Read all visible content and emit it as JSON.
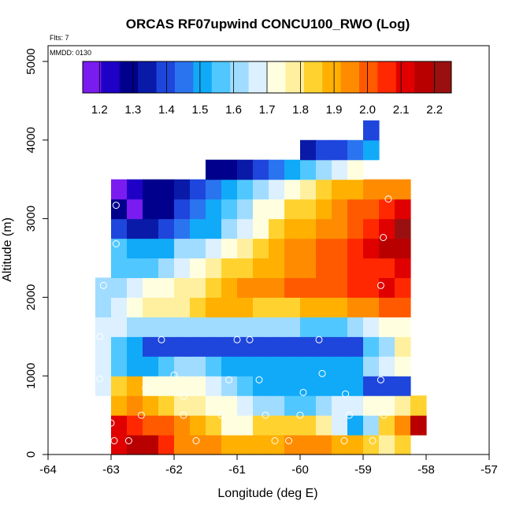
{
  "chart_data": {
    "type": "heatmap",
    "title": "ORCAS RF07upwind CONCU100_RWO (Log)",
    "xlabel": "Longitude (deg E)",
    "ylabel": "Altitude (m)",
    "xlim": [
      -64,
      -57
    ],
    "ylim": [
      0,
      5200
    ],
    "xticks": [
      -64,
      -63,
      -62,
      -61,
      -60,
      -59,
      -58,
      -57
    ],
    "yticks": [
      0,
      1000,
      2000,
      3000,
      4000,
      5000
    ],
    "x_tick_labels": [
      "-64",
      "-63",
      "-62",
      "-61",
      "-60",
      "-59",
      "-58",
      "-57"
    ],
    "y_tick_labels": [
      "0",
      "1000",
      "2000",
      "3000",
      "4000",
      "5000"
    ],
    "flights_label": "Flts: 7",
    "date_label": "MMDD: 0130",
    "colorbar": {
      "min": 1.15,
      "max": 2.25,
      "tick_labels": [
        "1.2",
        "1.3",
        "1.4",
        "1.5",
        "1.6",
        "1.7",
        "1.8",
        "1.9",
        "2.0",
        "2.1",
        "2.2"
      ],
      "tick_values": [
        1.2,
        1.3,
        1.4,
        1.5,
        1.6,
        1.7,
        1.8,
        1.9,
        2.0,
        2.1,
        2.2
      ],
      "colors": [
        "#7a1cf0",
        "#1f00c6",
        "#00008c",
        "#0a1aa8",
        "#1e46dc",
        "#2a74f0",
        "#10aaf8",
        "#50c8ff",
        "#a0dcff",
        "#dcf0ff",
        "#ffffe0",
        "#fff0a0",
        "#ffd230",
        "#ffb000",
        "#ff8c00",
        "#ff5a00",
        "#ff2800",
        "#e00000",
        "#b80000",
        "#9a1010"
      ]
    },
    "grid": {
      "lon_start": -63.35,
      "lon_step": 0.25,
      "alt_step": 250,
      "rows": [
        {
          "alt": 0,
          "lon_start": -63.0,
          "values": [
            2.12,
            2.18,
            2.16,
            2.08,
            1.97,
            1.93,
            1.93,
            1.9,
            1.91,
            1.91,
            1.89,
            1.92,
            1.93,
            1.93,
            1.9,
            1.87,
            1.84,
            1.79,
            1.86
          ]
        },
        {
          "alt": 250,
          "lon_start": -63.0,
          "values": [
            2.1,
            2.08,
            2.02,
            1.99,
            1.94,
            1.9,
            1.81,
            1.71,
            1.73,
            1.82,
            1.83,
            1.86,
            1.83,
            1.77,
            1.65,
            1.5,
            1.64,
            1.86,
            1.95,
            2.16
          ]
        },
        {
          "alt": 500,
          "lon_start": -63.0,
          "values": [
            1.91,
            1.92,
            1.91,
            1.82,
            1.78,
            1.79,
            1.74,
            1.72,
            1.68,
            1.64,
            1.62,
            1.57,
            1.55,
            1.61,
            1.65,
            1.66,
            1.71,
            1.72,
            1.77,
            1.84
          ]
        },
        {
          "alt": 750,
          "lon_start": -63.25,
          "values": [
            1.67,
            1.85,
            1.91,
            1.75,
            1.72,
            1.71,
            1.73,
            1.69,
            1.62,
            1.55,
            1.5,
            1.51,
            1.51,
            1.51,
            1.5,
            1.5,
            1.48,
            1.4,
            1.4,
            1.4
          ]
        },
        {
          "alt": 1000,
          "lon_start": -63.25,
          "values": [
            1.65,
            1.56,
            1.53,
            1.49,
            1.57,
            1.6,
            1.61,
            1.56,
            1.53,
            1.51,
            1.5,
            1.5,
            1.5,
            1.52,
            1.51,
            1.5,
            1.52,
            1.62,
            1.68,
            1.7
          ]
        },
        {
          "alt": 1250,
          "lon_start": -63.25,
          "values": [
            1.67,
            1.57,
            1.52,
            1.4,
            1.4,
            1.38,
            1.4,
            1.42,
            1.42,
            1.42,
            1.41,
            1.42,
            1.42,
            1.42,
            1.4,
            1.4,
            1.4,
            1.56,
            1.62,
            1.78
          ]
        },
        {
          "alt": 1500,
          "lon_start": -63.25,
          "values": [
            1.65,
            1.66,
            1.64,
            1.62,
            1.62,
            1.62,
            1.61,
            1.62,
            1.61,
            1.6,
            1.6,
            1.59,
            1.59,
            1.58,
            1.57,
            1.56,
            1.6,
            1.69,
            1.7,
            1.71
          ]
        },
        {
          "alt": 1750,
          "lon_start": -63.25,
          "values": [
            1.6,
            1.65,
            1.72,
            1.76,
            1.78,
            1.8,
            1.83,
            1.87,
            1.88,
            1.88,
            1.86,
            1.85,
            1.86,
            1.87,
            1.89,
            1.9,
            1.92,
            1.94,
            2.0,
            2.02
          ]
        },
        {
          "alt": 2000,
          "lon_start": -63.25,
          "values": [
            1.62,
            1.63,
            1.67,
            1.7,
            1.74,
            1.77,
            1.8,
            1.85,
            1.88,
            1.92,
            1.95,
            1.97,
            1.98,
            1.98,
            2.0,
            2.03,
            2.05,
            2.06,
            2.1,
            2.06
          ]
        },
        {
          "alt": 2250,
          "lon_start": -63.0,
          "values": [
            1.58,
            1.56,
            1.57,
            1.61,
            1.66,
            1.71,
            1.76,
            1.82,
            1.86,
            1.88,
            1.9,
            1.93,
            1.96,
            2.0,
            2.03,
            2.05,
            2.07,
            2.08,
            2.1
          ]
        },
        {
          "alt": 2500,
          "lon_start": -63.0,
          "values": [
            1.56,
            1.5,
            1.5,
            1.53,
            1.6,
            1.63,
            1.67,
            1.75,
            1.8,
            1.85,
            1.88,
            1.92,
            1.95,
            1.98,
            2.02,
            2.06,
            2.09,
            2.14,
            2.17
          ]
        },
        {
          "alt": 2750,
          "lon_start": -63.0,
          "values": [
            1.41,
            1.36,
            1.35,
            1.37,
            1.45,
            1.48,
            1.53,
            1.6,
            1.68,
            1.75,
            1.81,
            1.87,
            1.9,
            1.94,
            1.97,
            2.01,
            2.06,
            2.13,
            2.22
          ]
        },
        {
          "alt": 3000,
          "lon_start": -63.0,
          "values": [
            1.27,
            1.2,
            1.28,
            1.31,
            1.38,
            1.44,
            1.49,
            1.54,
            1.63,
            1.7,
            1.75,
            1.82,
            1.85,
            1.9,
            1.94,
            1.98,
            2.01,
            2.05,
            2.12
          ]
        },
        {
          "alt": 3250,
          "lon_start": -63.0,
          "values": [
            1.18,
            1.25,
            1.28,
            1.3,
            1.32,
            1.39,
            1.47,
            1.51,
            1.57,
            1.63,
            1.68,
            1.73,
            1.78,
            1.84,
            1.88,
            1.9,
            1.93,
            1.96,
            1.96
          ]
        },
        {
          "alt": 3500,
          "lon_start": -61.5,
          "values": [
            1.26,
            1.31,
            1.33,
            1.39,
            1.45,
            1.51,
            1.56,
            1.61,
            1.65,
            1.7
          ]
        },
        {
          "alt": 3750,
          "lon_start": -60.0,
          "values": [
            1.32,
            1.37,
            1.42,
            1.45,
            1.51
          ]
        },
        {
          "alt": 4000,
          "lon_start": -59.0,
          "values": [
            1.38
          ]
        }
      ]
    },
    "points": [
      {
        "lon": -62.92,
        "alt": 3170
      },
      {
        "lon": -62.92,
        "alt": 2680
      },
      {
        "lon": -63.12,
        "alt": 2150
      },
      {
        "lon": -63.18,
        "alt": 1500
      },
      {
        "lon": -62.2,
        "alt": 1460
      },
      {
        "lon": -61.0,
        "alt": 1460
      },
      {
        "lon": -60.8,
        "alt": 1460
      },
      {
        "lon": -59.7,
        "alt": 1460
      },
      {
        "lon": -63.18,
        "alt": 960
      },
      {
        "lon": -62.45,
        "alt": 850
      },
      {
        "lon": -62.0,
        "alt": 1010
      },
      {
        "lon": -61.85,
        "alt": 740
      },
      {
        "lon": -61.13,
        "alt": 950
      },
      {
        "lon": -60.65,
        "alt": 950
      },
      {
        "lon": -59.95,
        "alt": 790
      },
      {
        "lon": -59.65,
        "alt": 1030
      },
      {
        "lon": -59.28,
        "alt": 770
      },
      {
        "lon": -58.72,
        "alt": 950
      },
      {
        "lon": -63.08,
        "alt": 630
      },
      {
        "lon": -62.52,
        "alt": 500
      },
      {
        "lon": -61.85,
        "alt": 500
      },
      {
        "lon": -61.25,
        "alt": 500
      },
      {
        "lon": -60.55,
        "alt": 500
      },
      {
        "lon": -60.0,
        "alt": 500
      },
      {
        "lon": -59.22,
        "alt": 500
      },
      {
        "lon": -58.67,
        "alt": 500
      },
      {
        "lon": -63.0,
        "alt": 400
      },
      {
        "lon": -62.95,
        "alt": 175
      },
      {
        "lon": -62.72,
        "alt": 175
      },
      {
        "lon": -61.65,
        "alt": 175
      },
      {
        "lon": -60.4,
        "alt": 175
      },
      {
        "lon": -60.18,
        "alt": 175
      },
      {
        "lon": -59.3,
        "alt": 175
      },
      {
        "lon": -58.85,
        "alt": 175
      },
      {
        "lon": -58.72,
        "alt": 2150
      },
      {
        "lon": -58.68,
        "alt": 2760
      },
      {
        "lon": -58.6,
        "alt": 3250
      },
      {
        "lon": -58.68,
        "alt": 4000
      }
    ]
  }
}
